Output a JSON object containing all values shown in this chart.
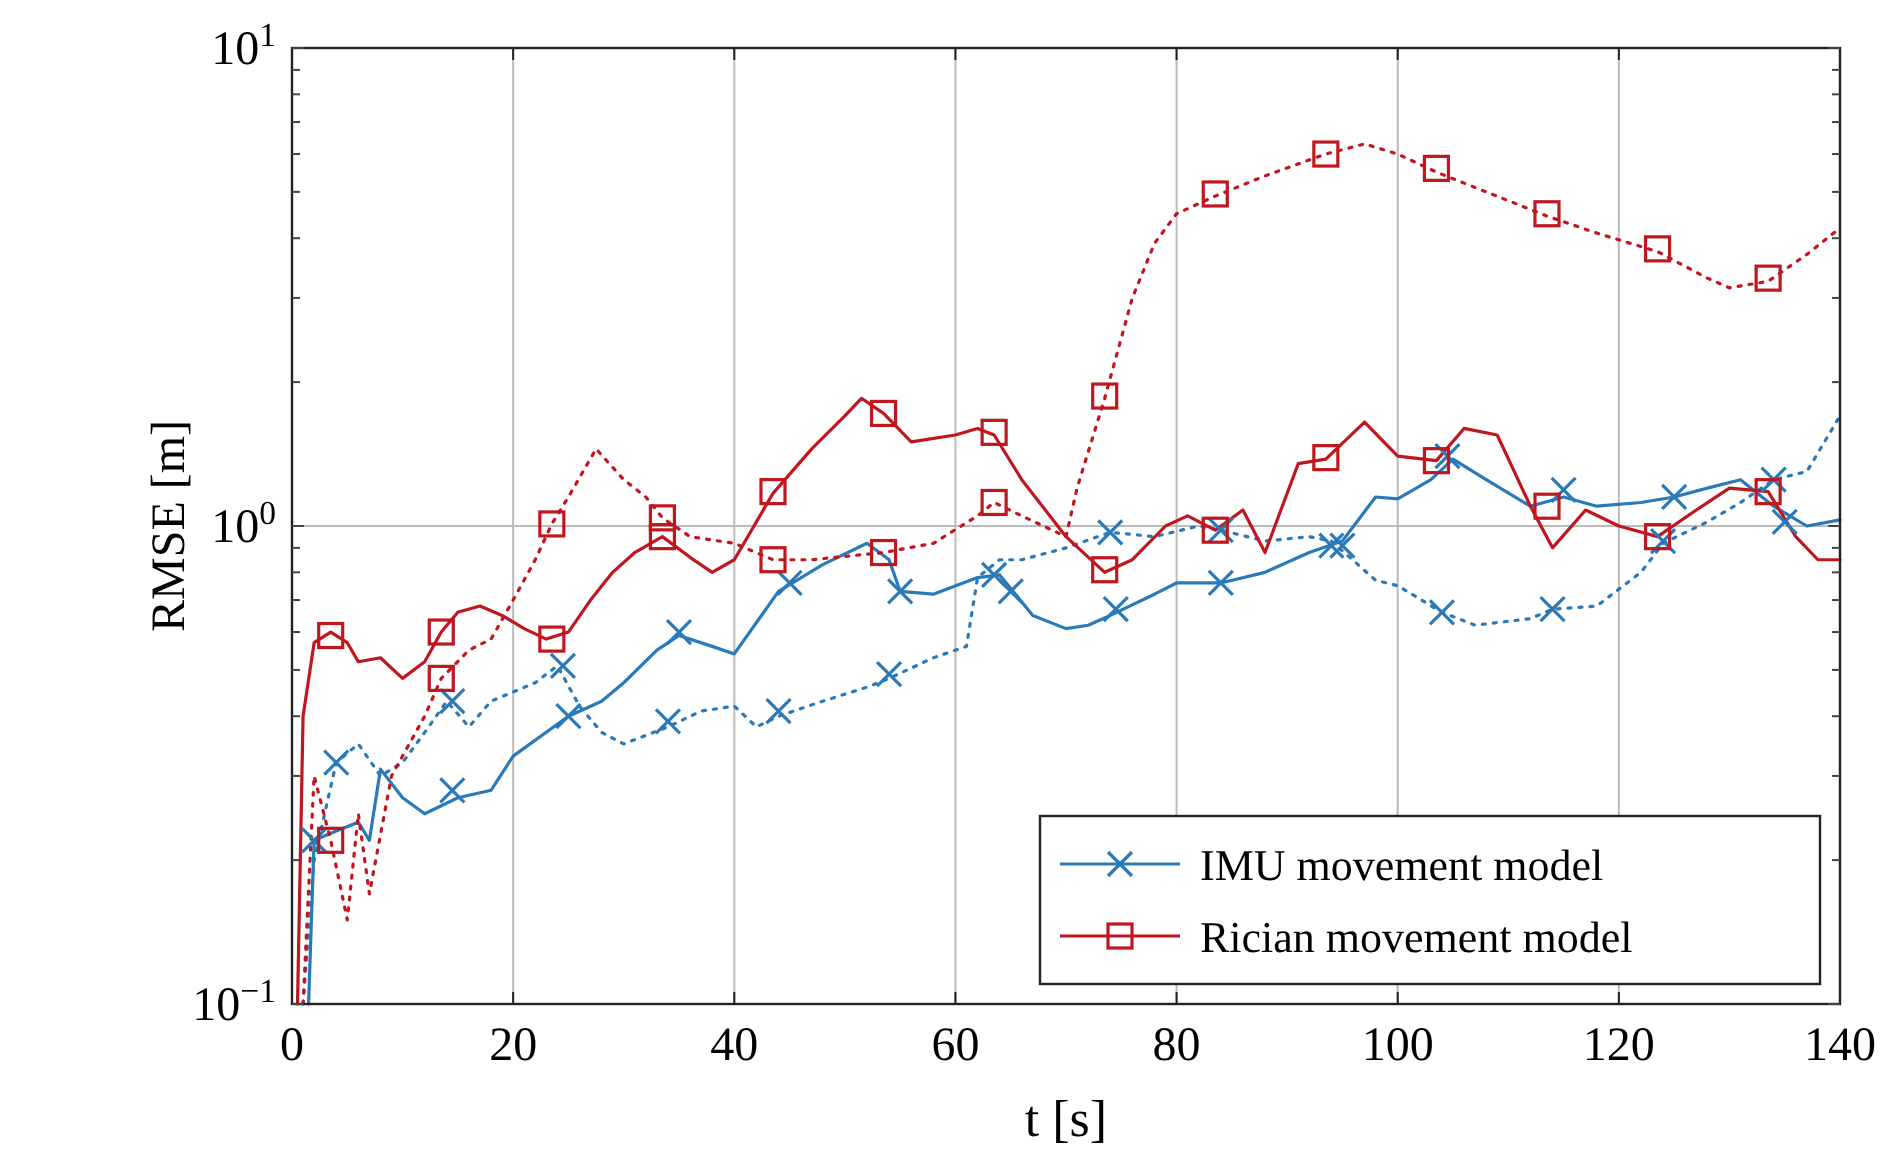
{
  "chart_data": {
    "type": "line",
    "xlabel": "t [s]",
    "ylabel": "RMSE [m]",
    "log": "y",
    "grid": true,
    "legend": "bottom right",
    "xlim": [
      0,
      140
    ],
    "xticks": [
      0,
      20,
      40,
      60,
      80,
      100,
      120,
      140
    ],
    "ylim": [
      0.1,
      10
    ],
    "yticks": [
      {
        "value": 0.1,
        "label": "10$^{−1}$"
      },
      {
        "value": 0.2,
        "label": null
      },
      {
        "value": 0.3,
        "label": null
      },
      {
        "value": 0.4,
        "label": null
      },
      {
        "value": 0.5,
        "label": null
      },
      {
        "value": 0.6,
        "label": null
      },
      {
        "value": 0.7,
        "label": null
      },
      {
        "value": 0.8,
        "label": null
      },
      {
        "value": 0.9,
        "label": null
      },
      {
        "value": 1,
        "label": "10$^{0}$"
      },
      {
        "value": 2,
        "label": null
      },
      {
        "value": 3,
        "label": null
      },
      {
        "value": 4,
        "label": null
      },
      {
        "value": 5,
        "label": null
      },
      {
        "value": 6,
        "label": null
      },
      {
        "value": 7,
        "label": null
      },
      {
        "value": 8,
        "label": null
      },
      {
        "value": 9,
        "label": null
      },
      {
        "value": 10,
        "label": "10$^{1}$"
      }
    ],
    "series": [
      {
        "name": "IMU movement model",
        "color": "#2a7ab8",
        "line_style": "solid",
        "x": [
          1.5,
          2,
          4,
          6,
          7,
          8,
          10,
          12,
          15,
          18,
          20,
          25,
          28,
          30,
          33,
          35,
          38,
          40,
          44,
          48,
          52,
          54,
          55,
          58,
          62,
          64,
          67,
          70,
          72,
          74,
          78,
          80,
          84,
          88,
          92,
          95,
          98,
          100,
          103,
          105,
          108,
          112,
          115,
          118,
          122,
          125,
          128,
          131,
          134,
          137,
          140
        ],
        "values": [
          0.1,
          0.22,
          0.23,
          0.24,
          0.22,
          0.31,
          0.27,
          0.25,
          0.27,
          0.28,
          0.33,
          0.4,
          0.43,
          0.47,
          0.55,
          0.59,
          0.56,
          0.54,
          0.73,
          0.83,
          0.92,
          0.85,
          0.73,
          0.72,
          0.78,
          0.79,
          0.65,
          0.61,
          0.62,
          0.65,
          0.72,
          0.76,
          0.76,
          0.8,
          0.88,
          0.93,
          1.15,
          1.14,
          1.25,
          1.38,
          1.25,
          1.1,
          1.15,
          1.1,
          1.12,
          1.15,
          1.2,
          1.25,
          1.1,
          1.0,
          1.03
        ]
      },
      {
        "color": "#2a7ab8",
        "line_style": "dotted",
        "x": [
          1,
          2,
          4,
          6,
          8,
          10,
          12,
          14,
          16,
          18,
          22,
          24,
          26,
          28,
          30,
          34,
          37,
          40,
          42,
          44,
          48,
          52,
          54,
          58,
          61,
          62,
          64,
          66,
          70,
          74,
          78,
          82,
          84,
          88,
          92,
          94,
          98,
          100,
          104,
          107,
          112,
          114,
          118,
          122,
          124,
          128,
          131,
          134,
          137,
          140
        ],
        "values": [
          0.1,
          0.2,
          0.32,
          0.35,
          0.3,
          0.32,
          0.37,
          0.43,
          0.38,
          0.43,
          0.47,
          0.51,
          0.42,
          0.37,
          0.35,
          0.38,
          0.41,
          0.42,
          0.38,
          0.4,
          0.43,
          0.46,
          0.48,
          0.53,
          0.56,
          0.78,
          0.85,
          0.85,
          0.9,
          0.97,
          0.95,
          1.0,
          0.98,
          0.93,
          0.95,
          0.93,
          0.77,
          0.75,
          0.66,
          0.62,
          0.64,
          0.67,
          0.68,
          0.8,
          0.92,
          1.02,
          1.12,
          1.25,
          1.3,
          1.7
        ]
      },
      {
        "name": "Rician movement model",
        "color": "#c0171f",
        "line_style": "solid",
        "x": [
          0.5,
          1,
          2,
          3.5,
          5,
          6,
          8,
          10,
          12,
          13.5,
          15,
          17,
          19,
          21,
          23,
          25,
          27,
          29,
          31,
          33.5,
          36,
          38,
          40,
          43.5,
          47,
          50,
          51.5,
          53.5,
          56,
          60,
          62,
          63.5,
          66,
          70,
          73.5,
          76,
          79,
          81,
          83.5,
          86,
          88,
          91,
          93.5,
          97,
          100,
          103.5,
          106,
          109,
          112,
          114,
          117,
          120,
          123.5,
          127,
          130,
          133.5,
          136,
          138,
          140
        ],
        "values": [
          0.1,
          0.4,
          0.57,
          0.6,
          0.57,
          0.52,
          0.53,
          0.48,
          0.52,
          0.6,
          0.66,
          0.68,
          0.65,
          0.61,
          0.58,
          0.6,
          0.7,
          0.8,
          0.88,
          0.95,
          0.86,
          0.8,
          0.85,
          1.17,
          1.45,
          1.7,
          1.85,
          1.72,
          1.5,
          1.55,
          1.6,
          1.55,
          1.25,
          0.95,
          0.8,
          0.85,
          1.0,
          1.05,
          0.98,
          1.08,
          0.88,
          1.35,
          1.38,
          1.65,
          1.4,
          1.37,
          1.6,
          1.55,
          1.1,
          0.9,
          1.08,
          1.0,
          0.95,
          1.08,
          1.2,
          1.18,
          0.95,
          0.85,
          0.85
        ]
      },
      {
        "color": "#c0171f",
        "line_style": "dotted",
        "x": [
          1,
          2,
          3.5,
          5,
          6,
          7,
          9,
          12,
          13.5,
          16,
          18,
          20,
          22,
          23.5,
          25,
          27.5,
          30,
          32,
          33.5,
          36,
          40,
          43.5,
          47,
          53.5,
          58,
          62,
          63.5,
          66,
          70,
          71,
          73.5,
          76,
          78,
          80,
          83.5,
          88,
          93.5,
          97,
          100,
          103.5,
          108,
          113.5,
          118,
          123.5,
          128,
          130,
          133.5,
          137,
          140
        ],
        "values": [
          0.1,
          0.3,
          0.22,
          0.15,
          0.25,
          0.17,
          0.3,
          0.4,
          0.48,
          0.55,
          0.58,
          0.7,
          0.85,
          1.01,
          1.15,
          1.45,
          1.25,
          1.15,
          1.04,
          0.95,
          0.92,
          0.85,
          0.85,
          0.88,
          0.92,
          1.05,
          1.12,
          1.05,
          0.95,
          1.2,
          1.85,
          3.0,
          3.9,
          4.5,
          4.9,
          5.4,
          6.0,
          6.3,
          6.0,
          5.5,
          5.0,
          4.45,
          4.1,
          3.75,
          3.3,
          3.15,
          3.25,
          3.7,
          4.2
        ]
      },
      {
        "type": "scatter",
        "color": "#2a7ab8",
        "marker": "cross",
        "x": [
          2,
          14.5,
          25,
          35,
          45,
          55,
          65,
          74.5,
          84,
          95,
          104.5,
          115,
          125,
          135
        ],
        "values": [
          0.22,
          0.28,
          0.4,
          0.6,
          0.76,
          0.73,
          0.73,
          0.67,
          0.76,
          0.91,
          1.4,
          1.19,
          1.15,
          1.02
        ]
      },
      {
        "type": "scatter",
        "color": "#2a7ab8",
        "marker": "cross",
        "x": [
          4,
          14.5,
          24.5,
          34,
          44,
          54,
          63.5,
          74,
          84,
          94,
          104,
          114,
          124,
          134
        ],
        "values": [
          0.32,
          0.43,
          0.51,
          0.39,
          0.41,
          0.49,
          0.79,
          0.97,
          0.98,
          0.91,
          0.66,
          0.67,
          0.93,
          1.25
        ]
      },
      {
        "type": "scatter",
        "color": "#c0171f",
        "marker": "square",
        "x": [
          3.5,
          13.5,
          23.5,
          33.5,
          43.5,
          53.5,
          63.5,
          73.5,
          83.5,
          93.5,
          103.5,
          113.5,
          123.5,
          133.5
        ],
        "values": [
          0.59,
          0.6,
          0.58,
          0.95,
          1.18,
          1.72,
          1.57,
          0.81,
          0.98,
          1.39,
          1.37,
          1.1,
          0.95,
          1.18
        ]
      },
      {
        "type": "scatter",
        "color": "#c0171f",
        "marker": "square",
        "x": [
          3.5,
          13.5,
          23.5,
          33.5,
          43.5,
          53.5,
          63.5,
          73.5,
          83.5,
          93.5,
          103.5,
          113.5,
          123.5,
          133.5
        ],
        "values": [
          0.22,
          0.48,
          1.01,
          1.04,
          0.85,
          0.88,
          1.12,
          1.87,
          4.95,
          6.0,
          5.6,
          4.5,
          3.8,
          3.3
        ]
      }
    ]
  }
}
